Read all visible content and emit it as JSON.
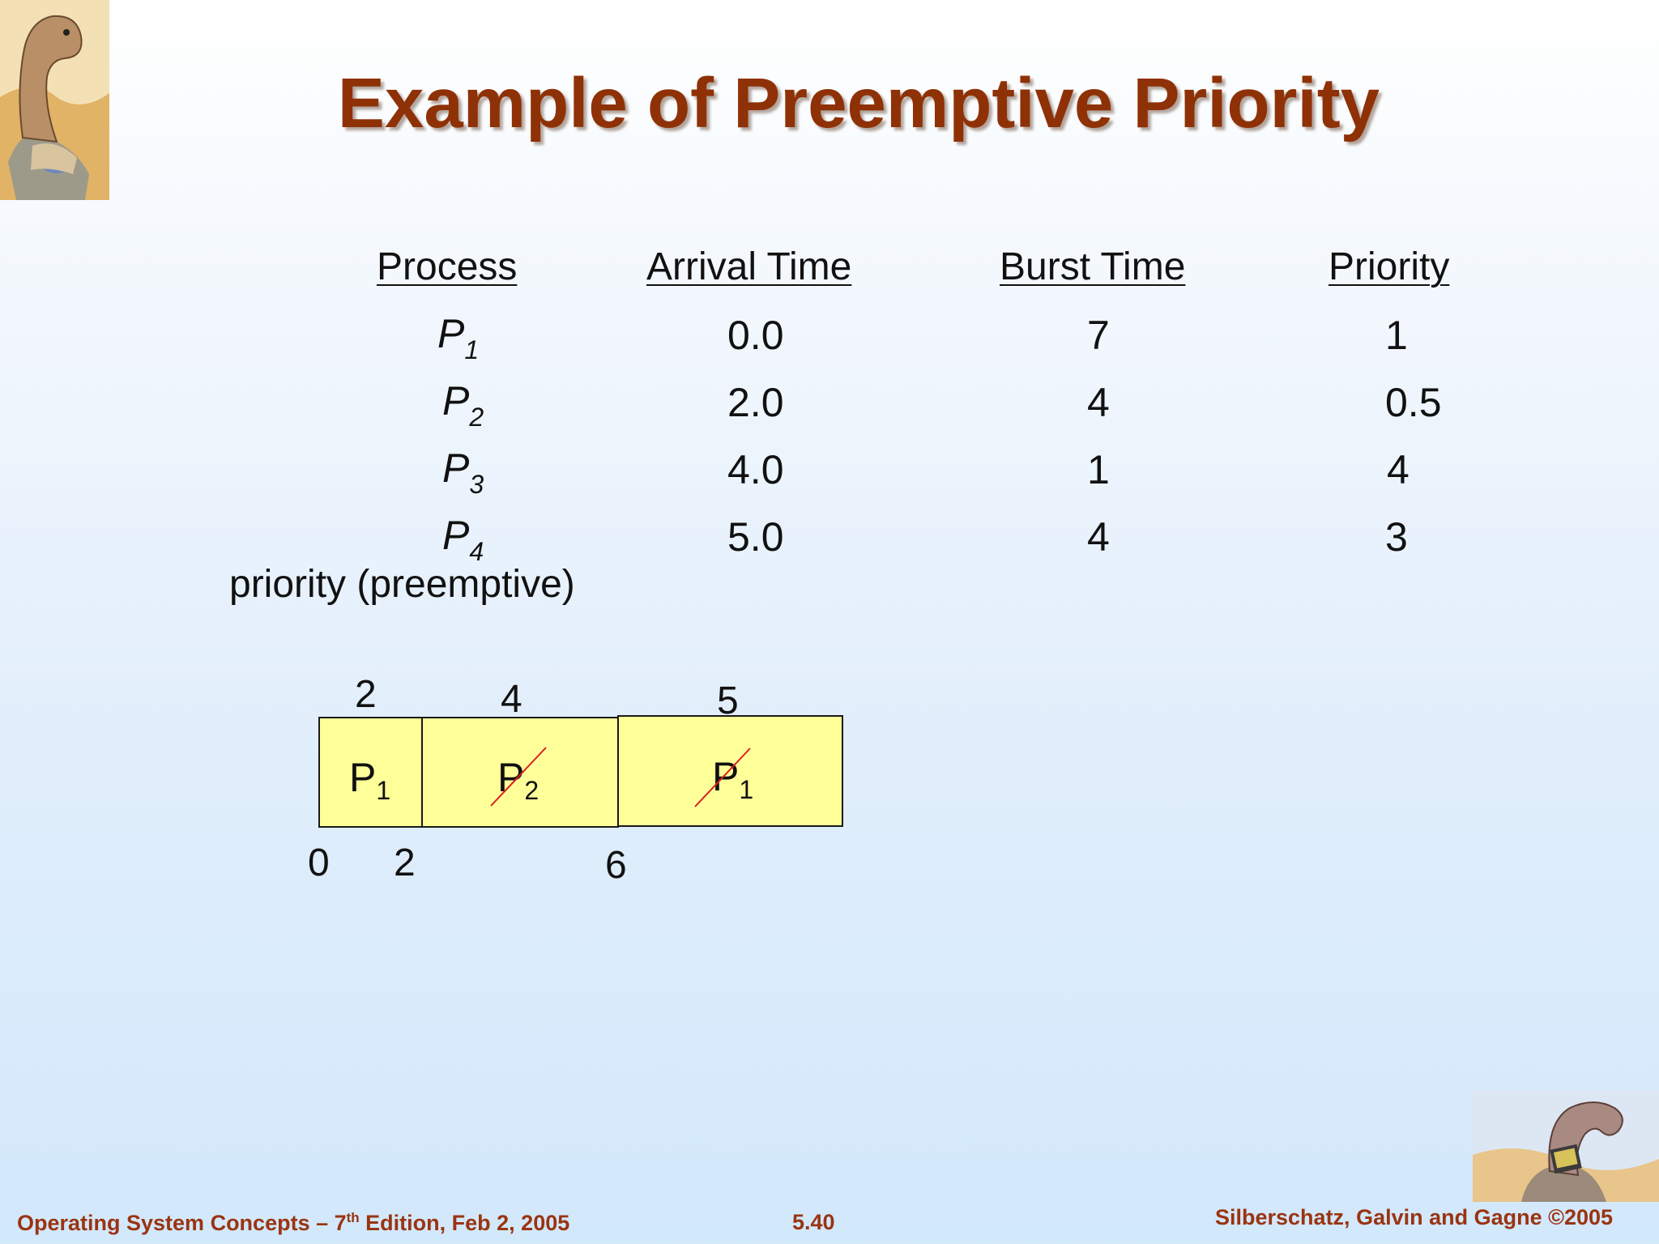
{
  "slide": {
    "title": "Example of Preemptive Priority",
    "logos": {
      "top": "dinosaur-logo",
      "bottom": "dinosaur-laptop-logo"
    }
  },
  "table": {
    "headers": [
      "Process",
      "Arrival Time",
      "Burst Time",
      "Priority"
    ],
    "rows": [
      {
        "process": "P",
        "sub": "1",
        "arrival": "0.0",
        "burst": "7",
        "priority": "1"
      },
      {
        "process": "P",
        "sub": "2",
        "arrival": "2.0",
        "burst": "4",
        "priority": "0.5"
      },
      {
        "process": "P",
        "sub": "3",
        "arrival": "4.0",
        "burst": "1",
        "priority": "4"
      },
      {
        "process": "P",
        "sub": "4",
        "arrival": "5.0",
        "burst": "4",
        "priority": "3"
      }
    ]
  },
  "note": "priority (preemptive)",
  "gantt": {
    "blocks": [
      {
        "label": "P",
        "sub": "1",
        "crossed": false
      },
      {
        "label": "P",
        "sub": "2",
        "crossed": true
      },
      {
        "label": "P",
        "sub": "1",
        "crossed": true
      }
    ],
    "top_numbers": [
      "2",
      "4",
      "5"
    ],
    "bottom_numbers": [
      "0",
      "2",
      "6"
    ]
  },
  "footer": {
    "left_before": "Operating System Concepts – 7",
    "left_sup": "th",
    "left_after": " Edition, Feb 2, 2005",
    "center": "5.40",
    "right": "Silberschatz, Galvin and Gagne ©2005"
  }
}
